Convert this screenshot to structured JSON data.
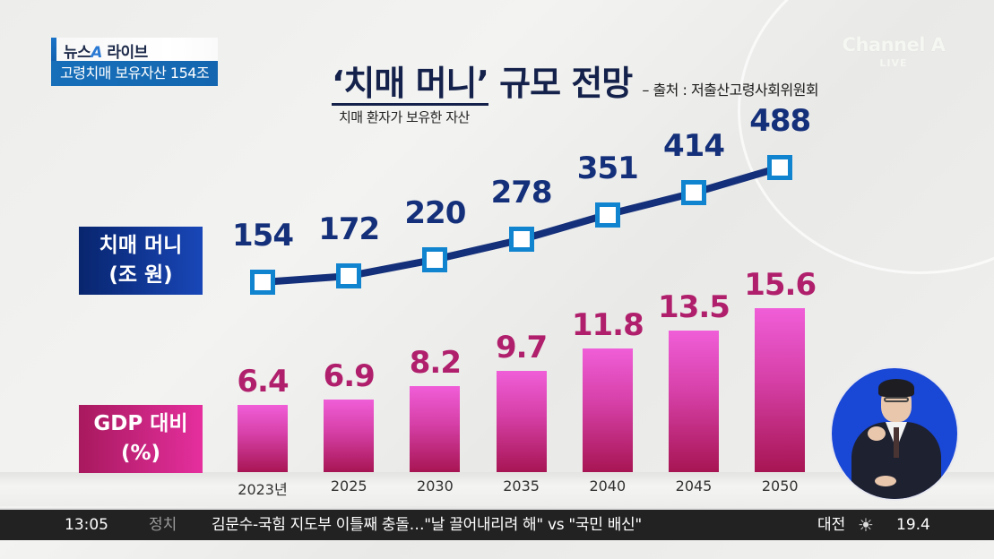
{
  "broadcast": {
    "program_brand": "뉴스",
    "program_brand_accent": "A",
    "program_name": "라이브",
    "headline_caption": "고령치매 보유자산 154조",
    "channel_logo": "Channel A",
    "live_label": "LIVE"
  },
  "graphic": {
    "title_quoted": "‘치매 머니’",
    "title_rest": " 규모 전망",
    "source": "– 출처 : 저출산고령사회위원회",
    "subtitle": "치매 환자가 보유한 자산",
    "row_label_money_line1": "치매 머니",
    "row_label_money_line2": "(조 원)",
    "row_label_gdp_line1": "GDP 대비",
    "row_label_gdp_line2": "(%)"
  },
  "chart_data": {
    "type": "bar",
    "title": "‘치매 머니’ 규모 전망",
    "subtitle": "치매 환자가 보유한 자산",
    "source": "저출산고령사회위원회",
    "categories": [
      "2023년",
      "2025",
      "2030",
      "2035",
      "2040",
      "2045",
      "2050"
    ],
    "series": [
      {
        "name": "치매 머니 (조 원)",
        "type": "line",
        "color": "#15307a",
        "marker_color": "#1184cf",
        "values": [
          154,
          172,
          220,
          278,
          351,
          414,
          488
        ]
      },
      {
        "name": "GDP 대비 (%)",
        "type": "bar",
        "color": "#d53fa6",
        "label_color": "#b01f6c",
        "values": [
          6.4,
          6.9,
          8.2,
          9.7,
          11.8,
          13.5,
          15.6
        ]
      }
    ],
    "value_labels": {
      "line": [
        "154",
        "172",
        "220",
        "278",
        "351",
        "414",
        "488"
      ],
      "bar": [
        "6.4",
        "6.9",
        "8.2",
        "9.7",
        "11.8",
        "13.5",
        "15.6"
      ]
    },
    "xlabel": "",
    "ylabel": "",
    "grid": false,
    "legend_position": "left row labels"
  },
  "ticker": {
    "time": "13:05",
    "category": "정치",
    "news": "김문수-국힘 지도부 이틀째 충돌…\"날 끌어내리려 해\" vs \"국민 배신\"",
    "weather_city": "대전",
    "weather_icon": "sun-icon",
    "temperature": "19.4"
  },
  "colors": {
    "navy": "#15307a",
    "marker_blue": "#1184cf",
    "magenta": "#b01f6c",
    "bar_top": "#f05ed8",
    "bar_bottom": "#a81553",
    "caption_blue": "#176fb9",
    "ticker_bg": "#222222"
  }
}
